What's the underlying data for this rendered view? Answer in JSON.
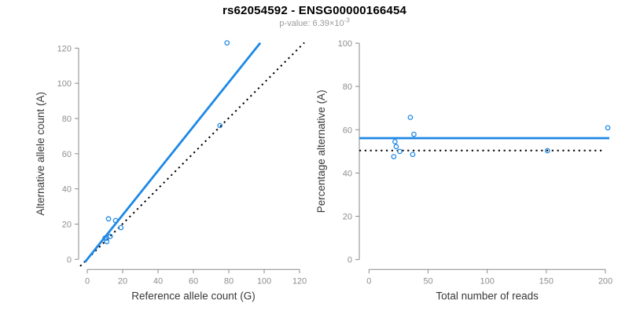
{
  "header": {
    "title": "rs62054592 - ENSG00000166454",
    "subtitle_prefix": "p-value: 6.39×10",
    "subtitle_exponent": "-3"
  },
  "colors": {
    "accent_blue": "#1E88E5",
    "dotted_black": "#000000",
    "axis_gray": "#8a8a8a",
    "tick_label_gray": "#8e8e8e",
    "axis_title_dark": "#3a3a3a",
    "subtitle_gray": "#9a9a9a"
  },
  "chart_data": [
    {
      "type": "scatter",
      "panel": "left",
      "xlabel": "Reference allele count (G)",
      "ylabel": "Alternative allele count (A)",
      "xlim": [
        0,
        120
      ],
      "ylim": [
        0,
        120
      ],
      "xticks": [
        0,
        20,
        40,
        60,
        80,
        100,
        120
      ],
      "yticks": [
        0,
        20,
        40,
        60,
        80,
        100,
        120
      ],
      "grid": false,
      "legend": "none",
      "points": [
        [
          12,
          23
        ],
        [
          16,
          22
        ],
        [
          19,
          18
        ],
        [
          10,
          12
        ],
        [
          11,
          12
        ],
        [
          13,
          13
        ],
        [
          11,
          10
        ],
        [
          75,
          76
        ],
        [
          79,
          123
        ]
      ],
      "lines": [
        {
          "name": "fit-line",
          "style": "solid",
          "color": "#1E88E5",
          "from": [
            -1.3,
            -1.6
          ],
          "to": [
            97.8,
            123.0
          ]
        },
        {
          "name": "identity-line",
          "style": "dotted",
          "color": "#000000",
          "from": [
            -4.0,
            -3.9
          ],
          "to": [
            122.7,
            123.1
          ]
        }
      ]
    },
    {
      "type": "scatter",
      "panel": "right",
      "xlabel": "Total number of reads",
      "ylabel": "Percentage alternative (A)",
      "xlim": [
        0,
        200
      ],
      "ylim": [
        0,
        100
      ],
      "xticks": [
        0,
        50,
        100,
        150,
        200
      ],
      "yticks": [
        0,
        20,
        40,
        60,
        80,
        100
      ],
      "grid": false,
      "legend": "none",
      "points": [
        [
          35,
          65.7
        ],
        [
          38,
          57.9
        ],
        [
          37,
          48.6
        ],
        [
          22,
          54.5
        ],
        [
          23,
          52.2
        ],
        [
          26,
          50.0
        ],
        [
          21,
          47.6
        ],
        [
          151,
          50.3
        ],
        [
          202,
          60.9
        ]
      ],
      "lines": [
        {
          "name": "mean-line",
          "style": "solid",
          "color": "#1E88E5",
          "from": [
            -8.2,
            56.1
          ],
          "to": [
            203.3,
            56.1
          ]
        },
        {
          "name": "null-line",
          "style": "dotted",
          "color": "#000000",
          "from": [
            -8.2,
            50.4
          ],
          "to": [
            198.6,
            50.4
          ]
        }
      ]
    }
  ]
}
